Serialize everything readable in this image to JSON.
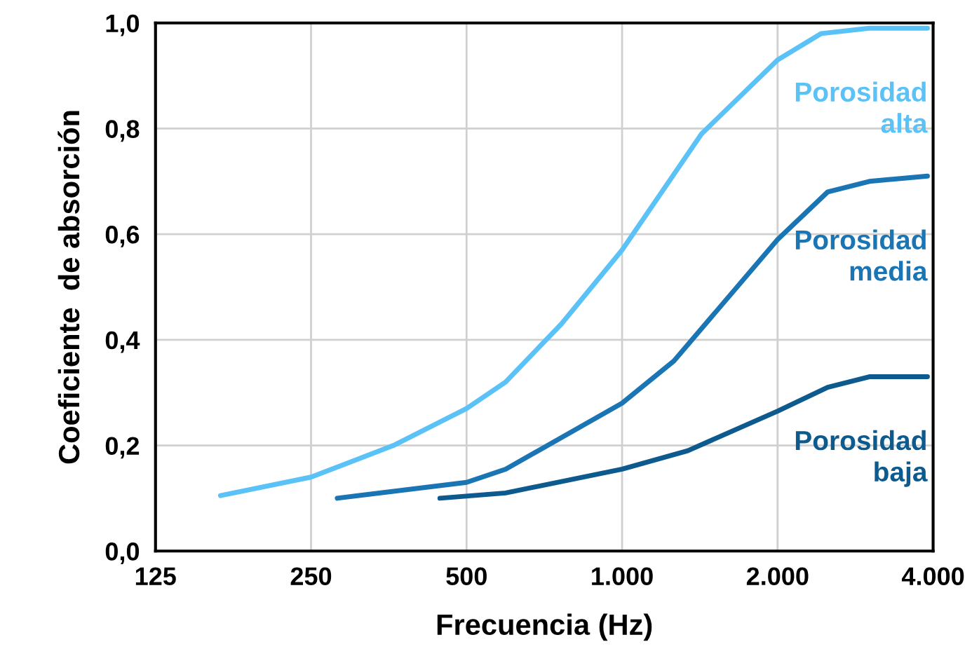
{
  "chart_data": {
    "type": "line",
    "xlabel": "Frecuencia (Hz)",
    "ylabel": "Coeficiente  de absorción",
    "log": "x",
    "xlim": [
      125,
      4000
    ],
    "ylim": [
      0,
      1
    ],
    "xticks": [
      125,
      250,
      500,
      {
        "value": 1000,
        "label": "1.000"
      },
      {
        "value": 2000,
        "label": "2.000"
      },
      {
        "value": 4000,
        "label": "4.000"
      }
    ],
    "yticks": [
      {
        "value": 0,
        "label": "0,0"
      },
      {
        "value": 0.2,
        "label": "0,2"
      },
      {
        "value": 0.4,
        "label": "0,4"
      },
      {
        "value": 0.6,
        "label": "0,6"
      },
      {
        "value": 0.8,
        "label": "0,8"
      },
      {
        "value": 1,
        "label": "1,0"
      }
    ],
    "grid": true,
    "legend": false,
    "marker": "none",
    "line_style": "solid",
    "series": [
      {
        "name": "Porosidad alta",
        "color": "#5bc2f7",
        "x": [
          167,
          250,
          361,
          500,
          595,
          763,
          1000,
          1425,
          2000,
          2430,
          3010,
          3900
        ],
        "values": [
          0.105,
          0.14,
          0.2,
          0.27,
          0.32,
          0.43,
          0.57,
          0.79,
          0.93,
          0.98,
          0.99,
          0.99
        ]
      },
      {
        "name": "Porosidad media",
        "color": "#1a75b5",
        "x": [
          281,
          500,
          595,
          1000,
          1260,
          2000,
          2500,
          3010,
          3900
        ],
        "values": [
          0.1,
          0.13,
          0.155,
          0.28,
          0.36,
          0.59,
          0.68,
          0.7,
          0.71
        ]
      },
      {
        "name": "Porosidad baja",
        "color": "#0d5a8f",
        "x": [
          444,
          595,
          1000,
          1340,
          2000,
          2500,
          3010,
          3900
        ],
        "values": [
          0.1,
          0.11,
          0.155,
          0.19,
          0.265,
          0.31,
          0.33,
          0.33
        ]
      }
    ]
  }
}
